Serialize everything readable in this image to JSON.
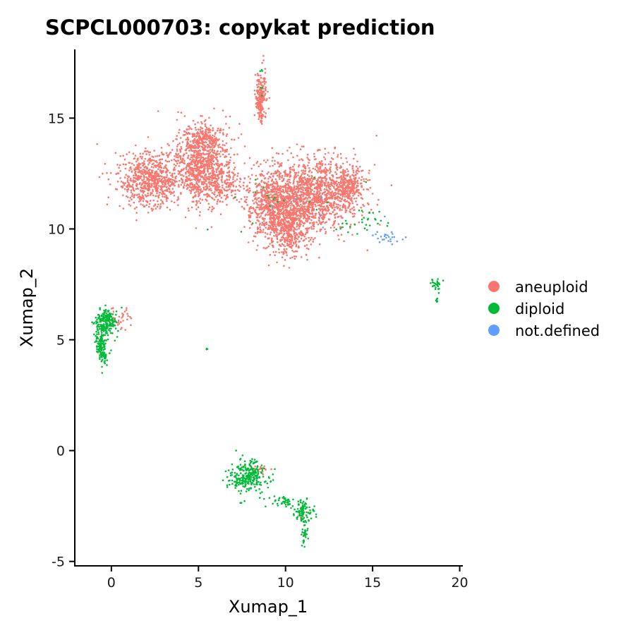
{
  "chart_data": {
    "type": "scatter",
    "title": "SCPCL000703: copykat prediction",
    "xlabel": "Xumap_1",
    "ylabel": "Xumap_2",
    "xlim": [
      -2.1,
      20.1
    ],
    "ylim": [
      -5.2,
      18.1
    ],
    "x_ticks": [
      0,
      5,
      10,
      15,
      20
    ],
    "y_ticks": [
      -5,
      0,
      5,
      10,
      15
    ],
    "grid": false,
    "legend_position": "right",
    "series": [
      {
        "name": "aneuploid",
        "color": "#F8766D",
        "clusters": [
          {
            "cx": 2.2,
            "cy": 12.2,
            "sx": 0.9,
            "sy": 0.6,
            "n": 700
          },
          {
            "cx": 5.3,
            "cy": 12.9,
            "sx": 0.8,
            "sy": 0.9,
            "n": 900
          },
          {
            "cx": 5.2,
            "cy": 14.0,
            "sx": 0.4,
            "sy": 0.35,
            "n": 150
          },
          {
            "cx": 6.6,
            "cy": 12.0,
            "sx": 0.6,
            "sy": 0.3,
            "n": 120
          },
          {
            "cx": 9.2,
            "cy": 11.2,
            "sx": 0.7,
            "sy": 0.8,
            "n": 600
          },
          {
            "cx": 10.2,
            "cy": 10.1,
            "sx": 0.7,
            "sy": 0.7,
            "n": 500
          },
          {
            "cx": 11.8,
            "cy": 11.6,
            "sx": 1.3,
            "sy": 0.8,
            "n": 1200
          },
          {
            "cx": 13.6,
            "cy": 12.0,
            "sx": 0.5,
            "sy": 0.4,
            "n": 200
          },
          {
            "cx": 8.6,
            "cy": 15.9,
            "sx": 0.14,
            "sy": 0.55,
            "n": 220
          },
          {
            "cx": 0.5,
            "cy": 6.0,
            "sx": 0.3,
            "sy": 0.25,
            "n": 35
          },
          {
            "cx": 8.6,
            "cy": -0.8,
            "sx": 0.3,
            "sy": 0.2,
            "n": 15
          },
          {
            "cx": 11.0,
            "cy": -3.0,
            "sx": 0.1,
            "sy": 0.1,
            "n": 5
          }
        ]
      },
      {
        "name": "diploid",
        "color": "#00BA38",
        "clusters": [
          {
            "cx": -0.3,
            "cy": 5.8,
            "sx": 0.3,
            "sy": 0.3,
            "n": 200
          },
          {
            "cx": -0.6,
            "cy": 4.8,
            "sx": 0.15,
            "sy": 0.3,
            "n": 110
          },
          {
            "cx": -0.4,
            "cy": 4.2,
            "sx": 0.1,
            "sy": 0.2,
            "n": 30
          },
          {
            "cx": 7.9,
            "cy": -1.2,
            "sx": 0.55,
            "sy": 0.35,
            "n": 260
          },
          {
            "cx": 9.8,
            "cy": -2.3,
            "sx": 0.3,
            "sy": 0.15,
            "n": 40
          },
          {
            "cx": 11.0,
            "cy": -2.7,
            "sx": 0.3,
            "sy": 0.3,
            "n": 90
          },
          {
            "cx": 11.1,
            "cy": -3.8,
            "sx": 0.1,
            "sy": 0.25,
            "n": 30
          },
          {
            "cx": 18.7,
            "cy": 7.5,
            "sx": 0.15,
            "sy": 0.12,
            "n": 25
          },
          {
            "cx": 18.7,
            "cy": 6.8,
            "sx": 0.05,
            "sy": 0.1,
            "n": 8
          },
          {
            "cx": 5.5,
            "cy": 4.6,
            "sx": 0.03,
            "sy": 0.03,
            "n": 3
          },
          {
            "cx": 14.6,
            "cy": 10.3,
            "sx": 0.7,
            "sy": 0.25,
            "n": 30
          },
          {
            "cx": 10.0,
            "cy": 11.2,
            "sx": 2.0,
            "sy": 1.0,
            "n": 20
          },
          {
            "cx": 8.6,
            "cy": 16.5,
            "sx": 0.1,
            "sy": 0.5,
            "n": 6
          }
        ]
      },
      {
        "name": "not.defined",
        "color": "#619CFF",
        "clusters": [
          {
            "cx": 15.8,
            "cy": 9.6,
            "sx": 0.5,
            "sy": 0.15,
            "n": 25
          },
          {
            "cx": 12.5,
            "cy": 11.0,
            "sx": 1.5,
            "sy": 0.8,
            "n": 6
          }
        ]
      }
    ]
  }
}
